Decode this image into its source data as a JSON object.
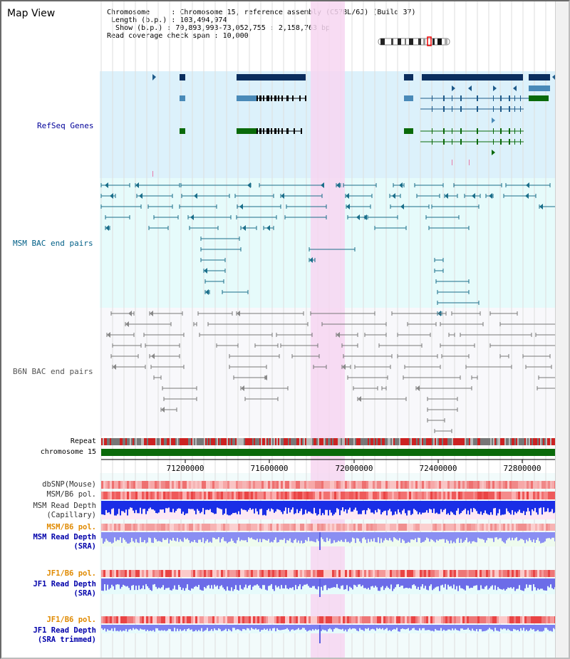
{
  "view_title": "Map View",
  "info": {
    "chromosome_label": "Chromosome",
    "chromosome_value": "Chromosome 15, reference assembly (C57BL/6J) (Build 37)",
    "length_label": "Length (b.p.)",
    "length_value": "103,494,974",
    "show_label": "Show (b.p.)",
    "show_value": "70,893,993-73,052,755 : 2,158,763 bp",
    "coverage_label": "Read coverage check span",
    "coverage_value": "10,000"
  },
  "tracks": {
    "refseq": "RefSeq Genes",
    "msm_bac": "MSM BAC end pairs",
    "b6n_bac": "B6N BAC end pairs",
    "repeat": "Repeat",
    "chromosome": "chromosome 15",
    "dbsnp": "dbSNP(Mouse)",
    "msm_pol_1": "MSM/B6 pol.",
    "msm_depth_cap_1": "MSM Read Depth",
    "msm_depth_cap_2": "(Capillary)",
    "msm_pol_2": "MSM/B6 pol.",
    "msm_depth_sra_1": "MSM Read Depth",
    "msm_depth_sra_2": "(SRA)",
    "jf1_pol_1": "JF1/B6 pol.",
    "jf1_depth_sra_1": "JF1 Read Depth",
    "jf1_depth_sra_2": "(SRA)",
    "jf1_pol_2": "JF1/B6 pol.",
    "jf1_depth_trim_1": "JF1 Read Depth",
    "jf1_depth_trim_2": "(SRA trimmed)"
  },
  "axis_ticks": [
    "71200000",
    "71600000",
    "72000000",
    "72400000",
    "72800000"
  ],
  "colors": {
    "refseq_label": "#000099",
    "msm_bac_label": "#005f87",
    "b6n_bac_label": "#555555",
    "pol_orange": "#e08a00",
    "depth_blue": "#0000aa",
    "highlight": "#f7d6f1",
    "chromosome_green": "#0a6a0a"
  }
}
